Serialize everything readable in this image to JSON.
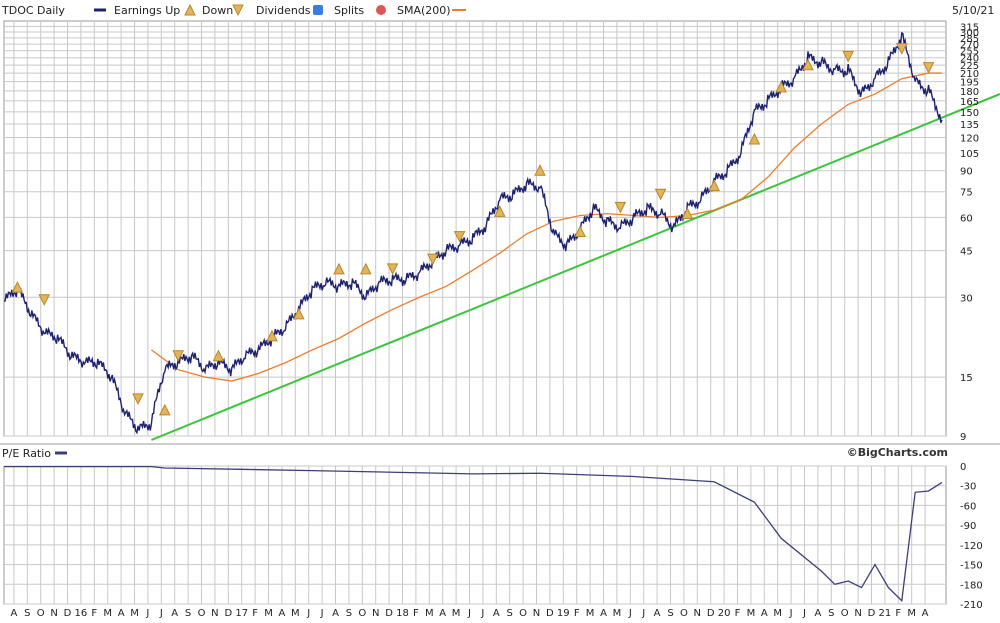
{
  "legend": {
    "ticker": "TDOC Daily",
    "earnings_up": "Earnings Up",
    "down": "Down",
    "dividends": "Dividends",
    "splits": "Splits",
    "sma": "SMA(200)",
    "date": "5/10/21",
    "pe_label": "P/E Ratio",
    "credit": "©BigCharts.com"
  },
  "colors": {
    "price": "#1c2171",
    "sma": "#f07c2a",
    "trend": "#3cc43c",
    "pe": "#3a3f7a",
    "grid": "#c8c8c8",
    "earnings_marker": "#e3b55a",
    "dividend_marker": "#3a7de0",
    "split_marker": "#e05555"
  },
  "chart_data": [
    {
      "type": "line",
      "title": "TDOC Daily",
      "y_scale": "log",
      "y_ticks": [
        9,
        15,
        30,
        45,
        60,
        75,
        90,
        105,
        120,
        135,
        150,
        165,
        180,
        195,
        210,
        225,
        240,
        255,
        270,
        285,
        300,
        315
      ],
      "x_ticks": [
        "A",
        "S",
        "O",
        "N",
        "D",
        "16",
        "F",
        "M",
        "A",
        "M",
        "J",
        "J",
        "A",
        "S",
        "O",
        "N",
        "D",
        "17",
        "F",
        "M",
        "A",
        "M",
        "J",
        "J",
        "A",
        "S",
        "O",
        "N",
        "D",
        "18",
        "F",
        "M",
        "A",
        "M",
        "J",
        "J",
        "A",
        "S",
        "O",
        "N",
        "D",
        "19",
        "F",
        "M",
        "A",
        "M",
        "J",
        "J",
        "A",
        "S",
        "O",
        "N",
        "D",
        "20",
        "F",
        "M",
        "A",
        "M",
        "J",
        "J",
        "A",
        "S",
        "O",
        "N",
        "D",
        "21",
        "F",
        "M",
        "A"
      ],
      "series": [
        {
          "name": "TDOC Daily",
          "x": [
            "2015-07",
            "2015-08",
            "2015-09",
            "2015-10",
            "2015-11",
            "2015-12",
            "2016-01",
            "2016-02",
            "2016-03",
            "2016-04",
            "2016-05",
            "2016-06",
            "2016-07",
            "2016-08",
            "2016-09",
            "2016-10",
            "2016-11",
            "2016-12",
            "2017-01",
            "2017-02",
            "2017-03",
            "2017-04",
            "2017-05",
            "2017-06",
            "2017-07",
            "2017-08",
            "2017-09",
            "2017-10",
            "2017-11",
            "2017-12",
            "2018-01",
            "2018-02",
            "2018-03",
            "2018-04",
            "2018-05",
            "2018-06",
            "2018-07",
            "2018-08",
            "2018-09",
            "2018-10",
            "2018-11",
            "2018-12",
            "2019-01",
            "2019-02",
            "2019-03",
            "2019-04",
            "2019-05",
            "2019-06",
            "2019-07",
            "2019-08",
            "2019-09",
            "2019-10",
            "2019-11",
            "2019-12",
            "2020-01",
            "2020-02",
            "2020-03",
            "2020-04",
            "2020-05",
            "2020-06",
            "2020-07",
            "2020-08",
            "2020-09",
            "2020-10",
            "2020-11",
            "2020-12",
            "2021-01",
            "2021-02",
            "2021-03",
            "2021-04",
            "2021-05"
          ],
          "values": [
            29,
            32,
            26,
            22,
            21,
            18,
            17,
            17,
            15,
            11,
            9.5,
            10,
            16,
            17,
            18,
            16,
            17,
            16,
            18,
            19,
            21,
            23,
            27,
            32,
            34,
            33,
            34,
            30,
            34,
            35,
            35,
            37,
            41,
            45,
            47,
            50,
            56,
            70,
            73,
            80,
            78,
            52,
            47,
            54,
            65,
            58,
            55,
            60,
            65,
            62,
            55,
            65,
            70,
            82,
            90,
            105,
            150,
            165,
            185,
            200,
            240,
            230,
            215,
            215,
            175,
            200,
            230,
            290,
            195,
            180,
            140
          ]
        },
        {
          "name": "SMA(200)",
          "x": [
            "2016-06",
            "2016-08",
            "2016-10",
            "2016-12",
            "2017-02",
            "2017-04",
            "2017-06",
            "2017-08",
            "2017-10",
            "2017-12",
            "2018-02",
            "2018-04",
            "2018-06",
            "2018-08",
            "2018-10",
            "2018-12",
            "2019-02",
            "2019-04",
            "2019-06",
            "2019-08",
            "2019-10",
            "2019-12",
            "2020-02",
            "2020-04",
            "2020-06",
            "2020-08",
            "2020-10",
            "2020-12",
            "2021-02",
            "2021-04",
            "2021-05"
          ],
          "values": [
            19,
            16,
            15,
            14.5,
            15.5,
            17,
            19,
            21,
            24,
            27,
            30,
            33,
            38,
            44,
            52,
            58,
            61,
            62,
            61,
            60,
            61,
            64,
            70,
            85,
            110,
            135,
            160,
            175,
            200,
            210,
            210
          ]
        },
        {
          "name": "Trend line",
          "x": [
            "2016-06",
            "2021-05"
          ],
          "values": [
            9,
            135
          ]
        }
      ],
      "markers": {
        "earnings_up": [
          "2015-08",
          "2016-07",
          "2016-11",
          "2017-03",
          "2017-05",
          "2017-08",
          "2017-10",
          "2018-08",
          "2018-11",
          "2019-02",
          "2019-10",
          "2019-12",
          "2020-03",
          "2020-05",
          "2020-07"
        ],
        "earnings_down": [
          "2015-10",
          "2016-05",
          "2016-08",
          "2017-12",
          "2018-03",
          "2018-05",
          "2019-05",
          "2019-08",
          "2020-10",
          "2021-02",
          "2021-04"
        ]
      }
    },
    {
      "type": "line",
      "title": "P/E Ratio",
      "y_ticks": [
        0,
        -30,
        -60,
        -90,
        -120,
        -150,
        -180,
        -210
      ],
      "series": [
        {
          "name": "P/E Ratio",
          "x": [
            "2015-07",
            "2016-06",
            "2016-07",
            "2017-06",
            "2018-06",
            "2018-11",
            "2019-06",
            "2019-12",
            "2020-03",
            "2020-05",
            "2020-08",
            "2020-09",
            "2020-10",
            "2020-11",
            "2020-12",
            "2021-01",
            "2021-02",
            "2021-03",
            "2021-04",
            "2021-05"
          ],
          "values": [
            -1,
            -1,
            -3,
            -7,
            -12,
            -11,
            -16,
            -24,
            -55,
            -110,
            -160,
            -180,
            -175,
            -185,
            -150,
            -185,
            -205,
            -40,
            -38,
            -25
          ]
        }
      ]
    }
  ]
}
